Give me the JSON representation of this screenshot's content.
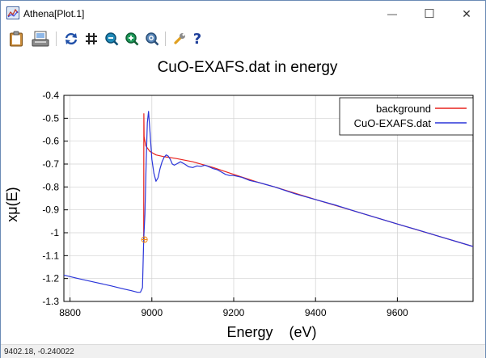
{
  "window": {
    "title": "Athena[Plot.1]",
    "minimize_glyph": "—",
    "maximize_glyph": "☐",
    "close_glyph": "✕"
  },
  "toolbar": {
    "icons": [
      "clipboard-icon",
      "save-plot-icon",
      "refresh-icon",
      "grid-icon",
      "zoom-in-icon",
      "zoom-out-icon",
      "zoom-reset-icon",
      "settings-wrench-icon",
      "help-icon"
    ],
    "help_glyph": "?"
  },
  "status": {
    "text": "9402.18, -0.240022"
  },
  "colors": {
    "background_series": "#e8231e",
    "data_series": "#2a35d9",
    "marker": "#f08a1a",
    "border": "#6b8bb5"
  },
  "chart_data": {
    "type": "line",
    "title": "CuO-EXAFS.dat in energy",
    "xlabel": "Energy    (eV)",
    "ylabel": "xμ(E)",
    "xlim": [
      8785,
      9785
    ],
    "ylim": [
      -1.3,
      -0.4
    ],
    "xticks": [
      8800,
      9000,
      9200,
      9400,
      9600
    ],
    "yticks": [
      -0.4,
      -0.5,
      -0.6,
      -0.7,
      -0.8,
      -0.9,
      -1,
      -1.1,
      -1.2,
      -1.3
    ],
    "legend_position": "top-right",
    "grid": true,
    "series": [
      {
        "name": "background",
        "color": "#e8231e",
        "x": [
          8980,
          8980.5,
          8981,
          8985,
          8995,
          9010,
          9030,
          9060,
          9100,
          9150,
          9200,
          9260,
          9300,
          9400,
          9500,
          9600,
          9700,
          9785
        ],
        "y": [
          -1.03,
          -0.48,
          -0.58,
          -0.62,
          -0.645,
          -0.66,
          -0.668,
          -0.676,
          -0.69,
          -0.715,
          -0.745,
          -0.78,
          -0.8,
          -0.855,
          -0.908,
          -0.962,
          -1.015,
          -1.06
        ]
      },
      {
        "name": "CuO-EXAFS.dat",
        "color": "#2a35d9",
        "x": [
          8785,
          8820,
          8860,
          8900,
          8930,
          8950,
          8965,
          8972,
          8977,
          8980,
          8983,
          8986,
          8989,
          8992,
          8995,
          9000,
          9005,
          9010,
          9015,
          9020,
          9025,
          9030,
          9035,
          9040,
          9045,
          9050,
          9055,
          9060,
          9070,
          9080,
          9090,
          9100,
          9110,
          9120,
          9130,
          9140,
          9150,
          9160,
          9170,
          9180,
          9190,
          9200,
          9220,
          9240,
          9260,
          9280,
          9300,
          9350,
          9400,
          9450,
          9500,
          9550,
          9600,
          9650,
          9700,
          9785
        ],
        "y": [
          -1.185,
          -1.2,
          -1.216,
          -1.232,
          -1.245,
          -1.253,
          -1.26,
          -1.26,
          -1.24,
          -1.03,
          -0.92,
          -0.7,
          -0.52,
          -0.47,
          -0.55,
          -0.68,
          -0.74,
          -0.775,
          -0.76,
          -0.72,
          -0.69,
          -0.67,
          -0.66,
          -0.665,
          -0.68,
          -0.7,
          -0.705,
          -0.7,
          -0.69,
          -0.7,
          -0.712,
          -0.715,
          -0.708,
          -0.71,
          -0.705,
          -0.712,
          -0.72,
          -0.725,
          -0.735,
          -0.745,
          -0.75,
          -0.75,
          -0.758,
          -0.772,
          -0.78,
          -0.79,
          -0.8,
          -0.83,
          -0.855,
          -0.88,
          -0.908,
          -0.935,
          -0.962,
          -0.988,
          -1.015,
          -1.06
        ]
      }
    ],
    "marker": {
      "x": 8982,
      "y": -1.03,
      "color": "#f08a1a"
    }
  }
}
